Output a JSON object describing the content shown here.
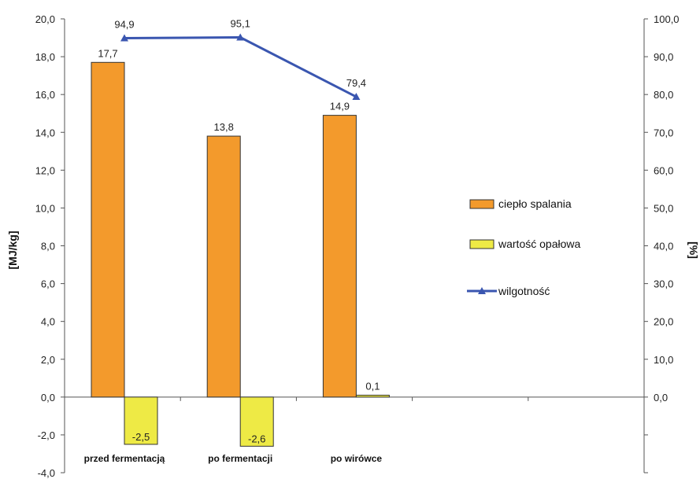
{
  "chart_data": {
    "type": "bar",
    "categories": [
      "przed fermentacją",
      "po fermentacji",
      "po wirówce"
    ],
    "series": [
      {
        "name": "ciepło spalania",
        "kind": "bar",
        "axis": "left",
        "color": "#F39A2C",
        "values": [
          17.7,
          13.8,
          14.9
        ],
        "labels": [
          "17,7",
          "13,8",
          "14,9"
        ]
      },
      {
        "name": "wartość opałowa",
        "kind": "bar",
        "axis": "left",
        "color": "#EEEA45",
        "values": [
          -2.5,
          -2.6,
          0.1
        ],
        "labels": [
          "-2,5",
          "-2,6",
          "0,1"
        ]
      },
      {
        "name": "wilgotność",
        "kind": "line",
        "axis": "right",
        "color": "#3A56B0",
        "marker": "triangle",
        "values": [
          94.9,
          95.1,
          79.4
        ],
        "labels": [
          "94,9",
          "95,1",
          "79,4"
        ]
      }
    ],
    "ylabel": "[MJ/kg]",
    "y2label": "[%]",
    "ylim": [
      -4,
      20
    ],
    "y2lim": [
      0,
      100
    ],
    "yticks": [
      "-4,0",
      "-2,0",
      "0,0",
      "2,0",
      "4,0",
      "6,0",
      "8,0",
      "10,0",
      "12,0",
      "14,0",
      "16,0",
      "18,0",
      "20,0"
    ],
    "y2ticks": [
      "0,0",
      "10,0",
      "20,0",
      "30,0",
      "40,0",
      "50,0",
      "60,0",
      "70,0",
      "80,0",
      "90,0",
      "100,0"
    ],
    "grid": false,
    "legend": "right"
  }
}
